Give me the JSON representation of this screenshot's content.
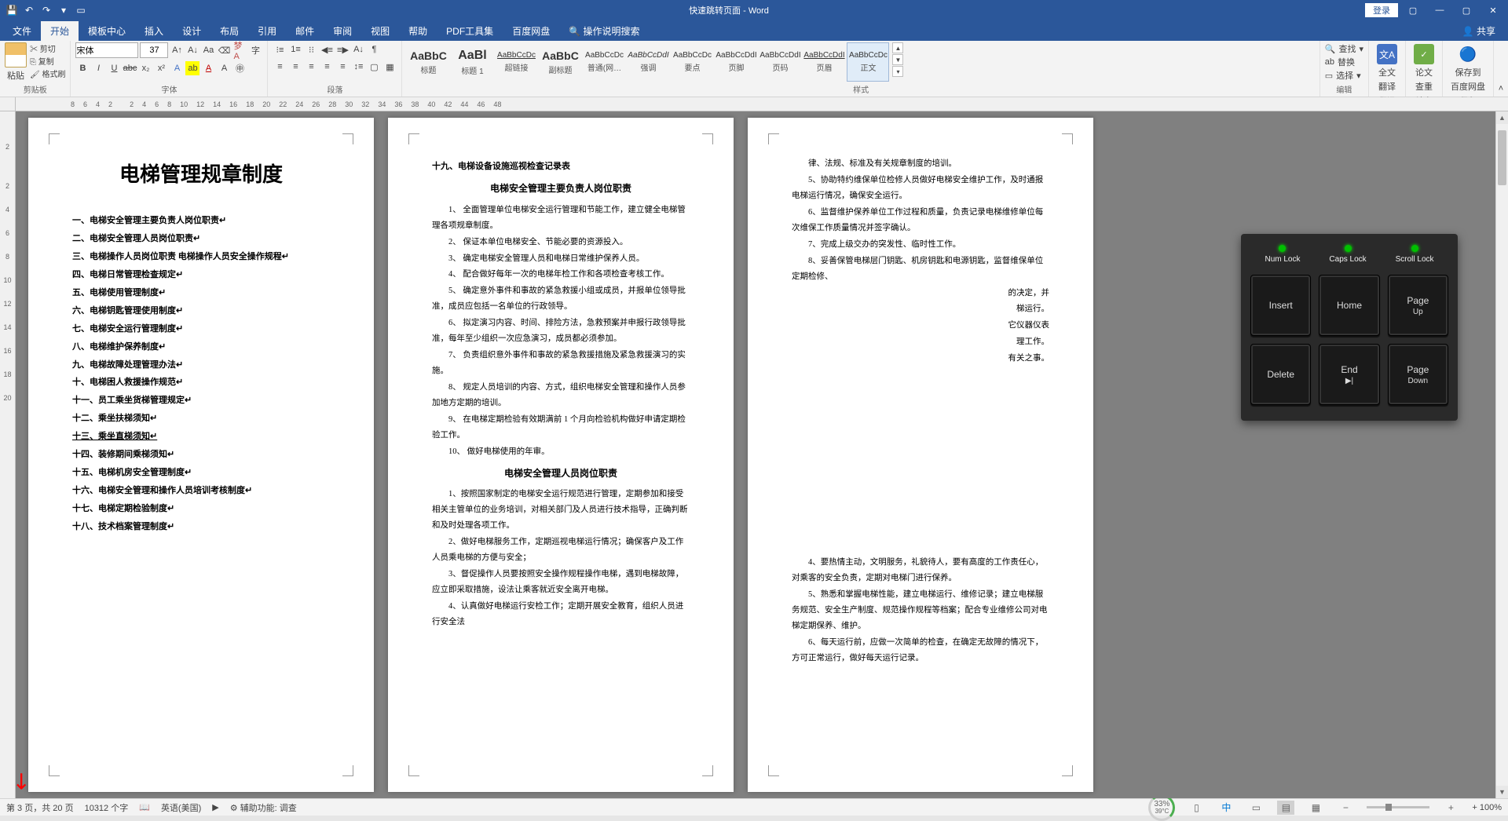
{
  "title_bar": {
    "document_title": "快速跳转页面 - Word",
    "login": "登录"
  },
  "ribbon_tabs": {
    "file": "文件",
    "home": "开始",
    "template": "模板中心",
    "insert": "插入",
    "design": "设计",
    "layout": "布局",
    "references": "引用",
    "mailings": "邮件",
    "review": "审阅",
    "view": "视图",
    "help": "帮助",
    "pdf": "PDF工具集",
    "baidu": "百度网盘",
    "tell_me": "操作说明搜索",
    "share": "共享"
  },
  "ribbon": {
    "clipboard": {
      "paste": "粘贴",
      "cut": "剪切",
      "copy": "复制",
      "format_painter": "格式刷",
      "label": "剪贴板"
    },
    "font": {
      "name": "宋体",
      "size": "37",
      "label": "字体"
    },
    "paragraph": {
      "label": "段落"
    },
    "styles": {
      "label": "样式",
      "items": [
        {
          "preview": "AaBbC",
          "label": "标题"
        },
        {
          "preview": "AaBl",
          "label": "标题 1"
        },
        {
          "preview": "AaBbCcDc",
          "label": "超链接"
        },
        {
          "preview": "AaBbC",
          "label": "副标题"
        },
        {
          "preview": "AaBbCcDc",
          "label": "普通(网…"
        },
        {
          "preview": "AaBbCcDdI",
          "label": "强调"
        },
        {
          "preview": "AaBbCcDc",
          "label": "要点"
        },
        {
          "preview": "AaBbCcDdI",
          "label": "页脚"
        },
        {
          "preview": "AaBbCcDdI",
          "label": "页码"
        },
        {
          "preview": "AaBbCcDdI",
          "label": "页眉"
        },
        {
          "preview": "AaBbCcDc",
          "label": "正文"
        }
      ]
    },
    "editing": {
      "find": "查找",
      "replace": "替换",
      "select": "选择",
      "label": "编辑"
    },
    "translate": {
      "full": "全文",
      "check": "翻译",
      "label": "翻译"
    },
    "paper": {
      "line1": "论文",
      "line2": "查重",
      "label": "论文"
    },
    "save_baidu": {
      "line1": "保存到",
      "line2": "百度网盘",
      "label": "保存"
    }
  },
  "ruler_h": [
    "8",
    "6",
    "4",
    "2",
    "",
    "2",
    "4",
    "6",
    "8",
    "10",
    "12",
    "14",
    "16",
    "18",
    "20",
    "22",
    "24",
    "26",
    "28",
    "30",
    "32",
    "34",
    "36",
    "38",
    "40",
    "42",
    "44",
    "46",
    "48"
  ],
  "ruler_v": [
    "2",
    "",
    "2",
    "4",
    "6",
    "8",
    "10",
    "12",
    "14",
    "16",
    "18",
    "20"
  ],
  "page1": {
    "title": "电梯管理规章制度",
    "toc": [
      "一、电梯安全管理主要负责人岗位职责",
      "二、电梯安全管理人员岗位职责",
      "三、电梯操作人员岗位职责  电梯操作人员安全操作规程",
      "四、电梯日常管理检查规定",
      "五、电梯使用管理制度",
      "六、电梯钥匙管理使用制度",
      "七、电梯安全运行管理制度",
      "八、电梯维护保养制度",
      "九、电梯故障处理管理办法",
      "十、电梯困人救援操作规范",
      "十一、员工乘坐货梯管理规定",
      "十二、乘坐扶梯须知",
      "十三、乘坐直梯须知",
      "十四、装修期间乘梯须知",
      "十五、电梯机房安全管理制度",
      "十六、电梯安全管理和操作人员培训考核制度",
      "十七、电梯定期检验制度",
      "十八、技术档案管理制度"
    ],
    "highlight_index": 12
  },
  "page2": {
    "section1_title": "十九、电梯设备设施巡视检查记录表",
    "h2a": "电梯安全管理主要负责人岗位职责",
    "paras_a": [
      "1、 全面管理单位电梯安全运行管理和节能工作，建立健全电梯管理各项规章制度。",
      "2、 保证本单位电梯安全、节能必要的资源投入。",
      "3、 确定电梯安全管理人员和电梯日常维护保养人员。",
      "4、 配合做好每年一次的电梯年检工作和各项检查考核工作。",
      "5、 确定意外事件和事故的紧急救援小组或成员，并报单位领导批准，成员应包括一名单位的行政领导。",
      "6、 拟定演习内容、时间、排险方法，急救预案并申报行政领导批准，每年至少组织一次应急演习，成员都必须参加。",
      "7、 负责组织意外事件和事故的紧急救援措施及紧急救援演习的实施。",
      "8、 规定人员培训的内容、方式，组织电梯安全管理和操作人员参加地方定期的培训。",
      "9、 在电梯定期检验有效期满前 1 个月向检验机构做好申请定期检验工作。",
      "10、 做好电梯使用的年审。"
    ],
    "h2b": "电梯安全管理人员岗位职责",
    "paras_b": [
      "1、按照国家制定的电梯安全运行规范进行管理，定期参加和接受相关主管单位的业务培训，对相关部门及人员进行技术指导，正确判断和及时处理各项工作。",
      "2、做好电梯服务工作，定期巡视电梯运行情况；确保客户及工作人员乘电梯的方便与安全；",
      "3、督促操作人员要按照安全操作规程操作电梯，遇到电梯故障，应立即采取措施，设法让乘客就近安全离开电梯。",
      "4、认真做好电梯运行安检工作；定期开展安全教育，组织人员进行安全法"
    ]
  },
  "page3": {
    "paras": [
      "律、法规、标准及有关规章制度的培训。",
      "5、协助特约维保单位检修人员做好电梯安全维护工作，及时通报电梯运行情况，确保安全运行。",
      "6、监督维护保养单位工作过程和质量，负责记录电梯维修单位每次维保工作质量情况并签字确认。",
      "7、完成上级交办的突发性、临时性工作。",
      "8、妥善保管电梯层门钥匙、机房钥匙和电源钥匙，监督维保单位定期检修、"
    ],
    "paras_after": [
      "的决定，并",
      "梯运行。",
      "它仪器仪表",
      "理工作。",
      "有关之事。"
    ],
    "paras_bottom": [
      "4、要热情主动，文明服务，礼貌待人，要有高度的工作责任心，对乘客的安全负责，定期对电梯门进行保养。",
      "5、熟悉和掌握电梯性能，建立电梯运行、维修记录；建立电梯服务规范、安全生产制度、规范操作规程等档案；配合专业维修公司对电梯定期保养、维护。",
      "6、每天运行前，应做一次简单的检查，在确定无故障的情况下，方可正常运行，做好每天运行记录。"
    ]
  },
  "keyboard": {
    "leds": [
      "Num\nLock",
      "Caps\nLock",
      "Scroll\nLock"
    ],
    "keys": [
      {
        "main": "Insert"
      },
      {
        "main": "Home"
      },
      {
        "main": "Page",
        "sub": "Up"
      },
      {
        "main": "Delete"
      },
      {
        "main": "End",
        "sub": "▶|"
      },
      {
        "main": "Page",
        "sub": "Down"
      }
    ]
  },
  "status": {
    "page": "第 3 页，共 20 页",
    "words": "10312 个字",
    "lang_icon": "英语(美国)",
    "accessibility": "辅助功能: 调查",
    "progress": "33%",
    "temp": "39°C",
    "zoom": "+ 100%"
  }
}
